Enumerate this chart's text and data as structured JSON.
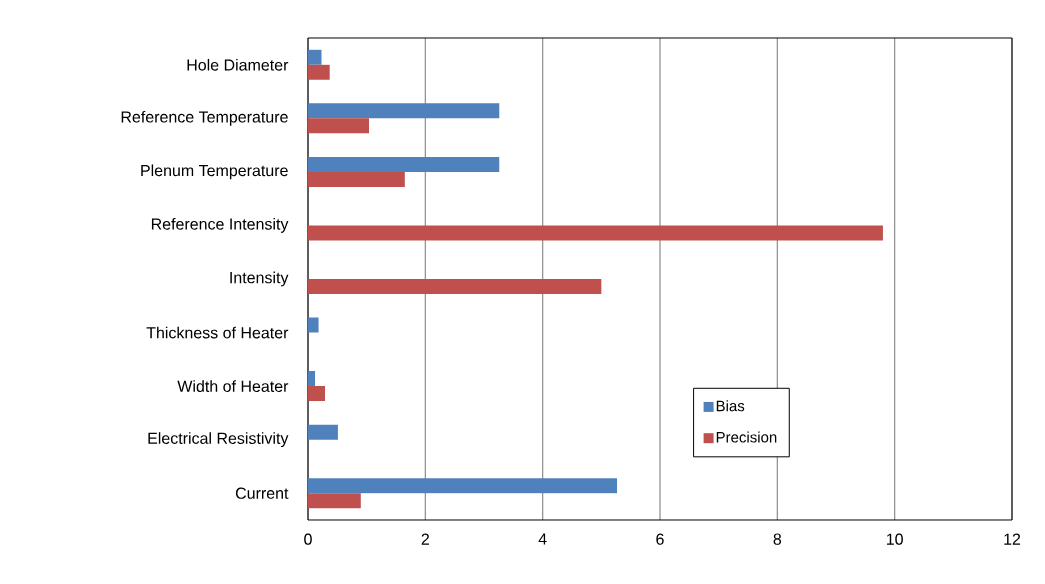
{
  "chart_data": {
    "type": "bar",
    "orientation": "horizontal",
    "categories": [
      "Hole Diameter",
      "Reference Temperature",
      "Plenum Temperature",
      "Reference Intensity",
      "Intensity",
      "Thickness of Heater",
      "Width of Heater",
      "Electrical Resistivity",
      "Current"
    ],
    "series": [
      {
        "name": "Bias",
        "color": "#4f81bd",
        "values": [
          0.23,
          3.26,
          3.26,
          null,
          null,
          0.18,
          0.12,
          0.51,
          5.27
        ]
      },
      {
        "name": "Precision",
        "color": "#c0504d",
        "values": [
          0.37,
          1.04,
          1.65,
          9.8,
          5.0,
          null,
          0.29,
          null,
          0.9
        ]
      }
    ],
    "xlim": [
      0,
      12
    ],
    "xticks": [
      0,
      2,
      4,
      6,
      8,
      10,
      12
    ],
    "grid": "x",
    "legend": "bottom right"
  }
}
